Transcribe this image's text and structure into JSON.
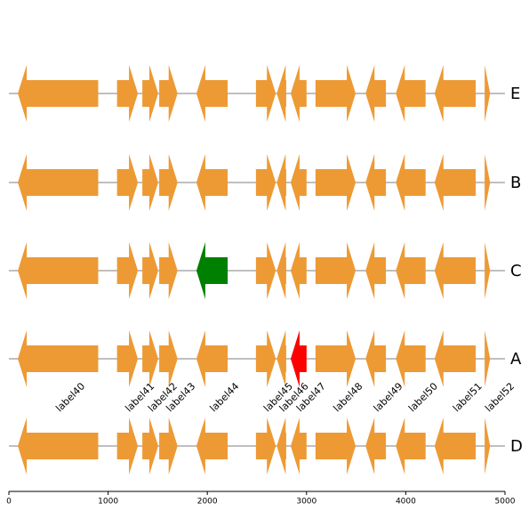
{
  "chart_data": {
    "type": "gene-map",
    "xlim": [
      0,
      5000
    ],
    "xticks": [
      0,
      1000,
      2000,
      3000,
      4000,
      5000
    ],
    "genes": [
      {
        "label": "label40",
        "start": 90,
        "end": 900,
        "strand": -1
      },
      {
        "label": "label41",
        "start": 1090,
        "end": 1300,
        "strand": 1
      },
      {
        "label": "label42",
        "start": 1345,
        "end": 1505,
        "strand": 1
      },
      {
        "label": "label43",
        "start": 1515,
        "end": 1700,
        "strand": 1
      },
      {
        "label": "label44",
        "start": 1890,
        "end": 2205,
        "strand": -1
      },
      {
        "label": "label45",
        "start": 2490,
        "end": 2690,
        "strand": 1
      },
      {
        "label": "label46",
        "start": 2700,
        "end": 2795,
        "strand": -1
      },
      {
        "label": "label47",
        "start": 2840,
        "end": 3000,
        "strand": -1
      },
      {
        "label": "label48",
        "start": 3090,
        "end": 3495,
        "strand": 1
      },
      {
        "label": "label49",
        "start": 3595,
        "end": 3800,
        "strand": -1
      },
      {
        "label": "label50",
        "start": 3900,
        "end": 4200,
        "strand": -1
      },
      {
        "label": "label51",
        "start": 4290,
        "end": 4705,
        "strand": -1
      },
      {
        "label": "label52",
        "start": 4795,
        "end": 4850,
        "strand": 1
      }
    ],
    "tracks": [
      {
        "name": "E",
        "colors": [
          "#ed9a35",
          "#ed9a35",
          "#ed9a35",
          "#ed9a35",
          "#ed9a35",
          "#ed9a35",
          "#ed9a35",
          "#ed9a35",
          "#ed9a35",
          "#ed9a35",
          "#ed9a35",
          "#ed9a35",
          "#ed9a35"
        ]
      },
      {
        "name": "B",
        "colors": [
          "#ed9a35",
          "#ed9a35",
          "#ed9a35",
          "#ed9a35",
          "#ed9a35",
          "#ed9a35",
          "#ed9a35",
          "#ed9a35",
          "#ed9a35",
          "#ed9a35",
          "#ed9a35",
          "#ed9a35",
          "#ed9a35"
        ]
      },
      {
        "name": "C",
        "colors": [
          "#ed9a35",
          "#ed9a35",
          "#ed9a35",
          "#ed9a35",
          "#008000",
          "#ed9a35",
          "#ed9a35",
          "#ed9a35",
          "#ed9a35",
          "#ed9a35",
          "#ed9a35",
          "#ed9a35",
          "#ed9a35"
        ]
      },
      {
        "name": "A",
        "colors": [
          "#ed9a35",
          "#ed9a35",
          "#ed9a35",
          "#ed9a35",
          "#ed9a35",
          "#ed9a35",
          "#ed9a35",
          "#ff0000",
          "#ed9a35",
          "#ed9a35",
          "#ed9a35",
          "#ed9a35",
          "#ed9a35"
        ]
      },
      {
        "name": "D",
        "colors": [
          "#ed9a35",
          "#ed9a35",
          "#ed9a35",
          "#ed9a35",
          "#ed9a35",
          "#ed9a35",
          "#ed9a35",
          "#ed9a35",
          "#ed9a35",
          "#ed9a35",
          "#ed9a35",
          "#ed9a35",
          "#ed9a35"
        ]
      }
    ],
    "label_after_track": "A"
  }
}
